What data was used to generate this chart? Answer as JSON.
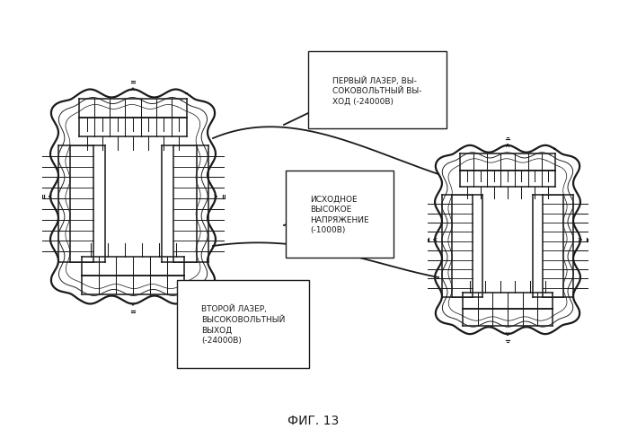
{
  "title": "ФИГ. 13",
  "background_color": "#ffffff",
  "line_color": "#1a1a1a",
  "label1": "ПЕРВЫЙ ЛАЗЕР, ВЫ-\nСОКОВОЛЬТНЫЙ ВЫ-\nХОД (-24000В)",
  "label2": "ИСХОДНОЕ\nВЫСОКОЕ\nНАПРЯЖЕНИЕ\n(-1000В)",
  "label3": "ВТОРОЙ ЛАЗЕР,\nВЫСОКОВОЛЬТНЫЙ\nВЫХОД\n(-24000В)",
  "lw_outer": 1.6,
  "lw_inner": 1.1,
  "lw_thin": 0.75,
  "lw_conn": 1.3,
  "font_size": 6.5
}
